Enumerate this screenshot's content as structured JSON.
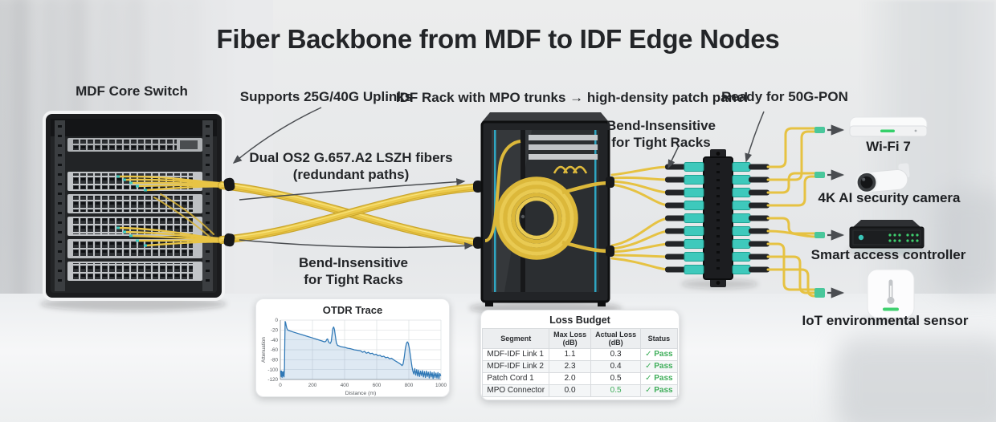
{
  "title": "Fiber Backbone from MDF to IDF Edge Nodes",
  "annotations": {
    "mdf_label": "MDF Core Switch",
    "uplinks": "Supports 25G/40G Uplinks",
    "fiber_line1": "Dual OS2 G.657.A2 LSZH fibers",
    "fiber_line2": "(redundant paths)",
    "bend_left_line1": "Bend-Insensitive",
    "bend_left_line2": "for Tight Racks",
    "idf_label": "IDF Rack with MPO trunks → high-density patch panel",
    "bend_right_line1": "Bend-Insensitive",
    "bend_right_line2": "for Tight Racks",
    "pon_label": "Ready for 50G-PON"
  },
  "devices": [
    {
      "name": "wifi-ap",
      "label": "Wi-Fi 7"
    },
    {
      "name": "security-camera",
      "label": "4K AI security camera"
    },
    {
      "name": "access-controller",
      "label": "Smart access controller"
    },
    {
      "name": "iot-sensor",
      "label": "IoT environmental sensor"
    }
  ],
  "colors": {
    "fiber_yellow": "#e8c445",
    "mpo_aqua": "#3ec9bc",
    "pass_green": "#3fae5a",
    "chart_blue": "#2f78b6",
    "label_dark": "#232528"
  },
  "loss_budget": {
    "title": "Loss Budget",
    "columns": [
      "Segment",
      "Max Loss\n(dB)",
      "Actual Loss\n(dB)",
      "Status"
    ],
    "check_glyph": "✓",
    "rows": [
      {
        "segment": "MDF-IDF Link 1",
        "max_loss": "1.1",
        "actual_loss": "0.3",
        "status": "Pass",
        "actual_highlight": false
      },
      {
        "segment": "MDF-IDF Link 2",
        "max_loss": "2.3",
        "actual_loss": "0.4",
        "status": "Pass",
        "actual_highlight": false
      },
      {
        "segment": "Patch Cord 1",
        "max_loss": "2.0",
        "actual_loss": "0.5",
        "status": "Pass",
        "actual_highlight": false
      },
      {
        "segment": "MPO Connector",
        "max_loss": "0.0",
        "actual_loss": "0.5",
        "status": "Pass",
        "actual_highlight": true
      }
    ]
  },
  "chart_data": {
    "type": "line",
    "title": "OTDR Trace",
    "xlabel": "Distance (m)",
    "ylabel": "Attenuation",
    "xlim": [
      0,
      1000
    ],
    "ylim": [
      -120,
      0
    ],
    "xticks": [
      0,
      200,
      400,
      600,
      800,
      1000
    ],
    "yticks": [
      0,
      -20,
      -40,
      -60,
      -80,
      -100,
      -120
    ],
    "grid": true,
    "legend": false,
    "line_color": "#2f78b6",
    "fill_color": "rgba(47,120,182,0.16)",
    "points": [
      [
        2,
        -102
      ],
      [
        5,
        -114
      ],
      [
        8,
        -103
      ],
      [
        11,
        -116
      ],
      [
        14,
        -105
      ],
      [
        17,
        -113
      ],
      [
        20,
        -104
      ],
      [
        23,
        -115
      ],
      [
        26,
        -95
      ],
      [
        28,
        -40
      ],
      [
        30,
        -3
      ],
      [
        33,
        -5
      ],
      [
        36,
        -10
      ],
      [
        40,
        -16
      ],
      [
        46,
        -20
      ],
      [
        52,
        -21
      ],
      [
        80,
        -24
      ],
      [
        110,
        -27
      ],
      [
        140,
        -30
      ],
      [
        170,
        -33
      ],
      [
        200,
        -36
      ],
      [
        230,
        -39
      ],
      [
        258,
        -42
      ],
      [
        275,
        -44
      ],
      [
        283,
        -43
      ],
      [
        289,
        -39
      ],
      [
        294,
        -38
      ],
      [
        299,
        -43
      ],
      [
        305,
        -46
      ],
      [
        311,
        -47
      ],
      [
        317,
        -43
      ],
      [
        322,
        -30
      ],
      [
        327,
        -17
      ],
      [
        332,
        -14
      ],
      [
        337,
        -19
      ],
      [
        343,
        -33
      ],
      [
        349,
        -46
      ],
      [
        356,
        -51
      ],
      [
        364,
        -52
      ],
      [
        380,
        -54
      ],
      [
        400,
        -55
      ],
      [
        420,
        -57
      ],
      [
        440,
        -58
      ],
      [
        460,
        -60
      ],
      [
        480,
        -61
      ],
      [
        500,
        -62
      ],
      [
        512,
        -65
      ],
      [
        524,
        -63
      ],
      [
        536,
        -67
      ],
      [
        548,
        -65
      ],
      [
        560,
        -68
      ],
      [
        572,
        -67
      ],
      [
        584,
        -70
      ],
      [
        596,
        -69
      ],
      [
        608,
        -72
      ],
      [
        620,
        -71
      ],
      [
        632,
        -74
      ],
      [
        644,
        -73
      ],
      [
        656,
        -76
      ],
      [
        668,
        -75
      ],
      [
        680,
        -78
      ],
      [
        692,
        -77
      ],
      [
        704,
        -80
      ],
      [
        714,
        -82
      ],
      [
        724,
        -84
      ],
      [
        734,
        -86
      ],
      [
        744,
        -88
      ],
      [
        752,
        -90
      ],
      [
        758,
        -92
      ],
      [
        764,
        -89
      ],
      [
        771,
        -76
      ],
      [
        778,
        -58
      ],
      [
        785,
        -47
      ],
      [
        791,
        -44
      ],
      [
        797,
        -47
      ],
      [
        803,
        -57
      ],
      [
        809,
        -70
      ],
      [
        815,
        -84
      ],
      [
        820,
        -95
      ],
      [
        825,
        -103
      ],
      [
        831,
        -109
      ],
      [
        837,
        -98
      ],
      [
        843,
        -111
      ],
      [
        849,
        -100
      ],
      [
        855,
        -113
      ],
      [
        861,
        -101
      ],
      [
        867,
        -114
      ],
      [
        873,
        -103
      ],
      [
        879,
        -112
      ],
      [
        885,
        -102
      ],
      [
        891,
        -115
      ],
      [
        897,
        -104
      ],
      [
        903,
        -116
      ],
      [
        909,
        -103
      ],
      [
        915,
        -114
      ],
      [
        921,
        -105
      ],
      [
        927,
        -117
      ],
      [
        933,
        -104
      ],
      [
        939,
        -115
      ],
      [
        945,
        -106
      ],
      [
        951,
        -118
      ],
      [
        957,
        -105
      ],
      [
        963,
        -116
      ],
      [
        969,
        -107
      ],
      [
        975,
        -117
      ],
      [
        981,
        -106
      ],
      [
        987,
        -118
      ],
      [
        993,
        -108
      ],
      [
        999,
        -113
      ]
    ]
  }
}
